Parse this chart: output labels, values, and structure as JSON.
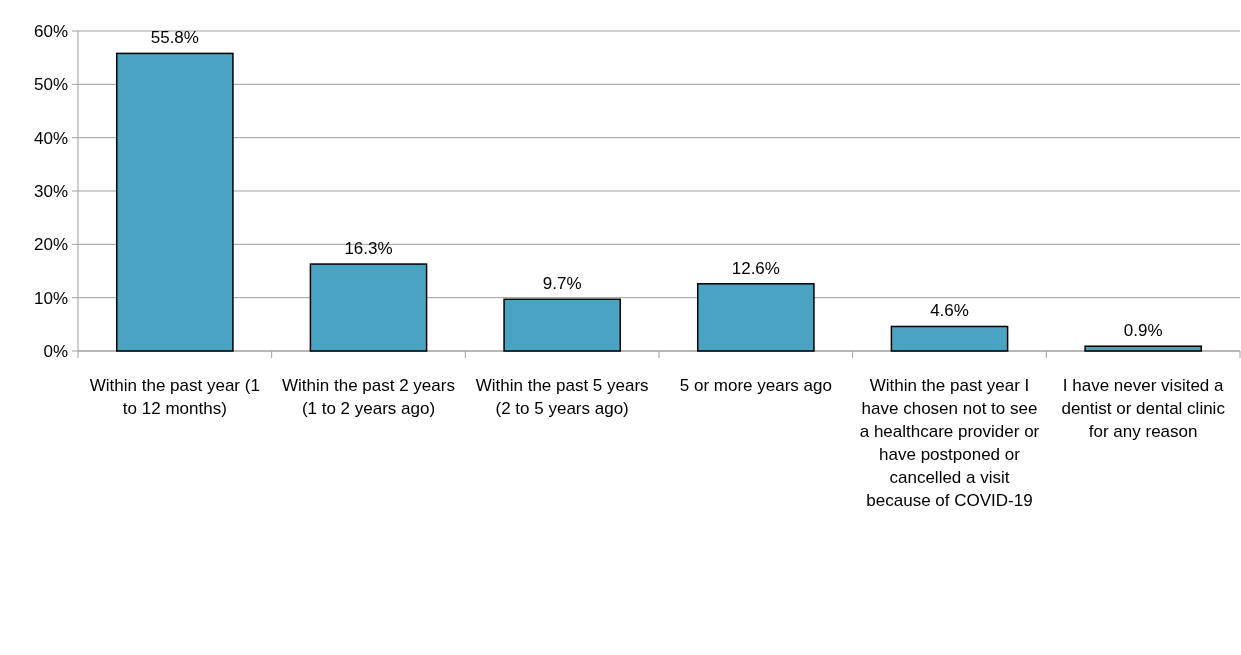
{
  "chart_data": {
    "type": "bar",
    "categories": [
      "Within the past year (1 to 12 months)",
      "Within the past 2 years (1 to 2 years ago)",
      "Within the past 5 years (2 to 5 years ago)",
      "5 or more years ago",
      "Within the past year I have chosen not to see a healthcare provider or have postponed or cancelled a visit because of COVID-19",
      "I have never visited a dentist or dental clinic for any reason"
    ],
    "values": [
      55.8,
      16.3,
      9.7,
      12.6,
      4.6,
      0.9
    ],
    "value_labels": [
      "55.8%",
      "16.3%",
      "9.7%",
      "12.6%",
      "4.6%",
      "0.9%"
    ],
    "color": "#4ba3c3",
    "ylim": [
      0,
      60
    ],
    "yticks": [
      {
        "value": 0,
        "label": "0%"
      },
      {
        "value": 10,
        "label": "10%"
      },
      {
        "value": 20,
        "label": "20%"
      },
      {
        "value": 30,
        "label": "30%"
      },
      {
        "value": 40,
        "label": "40%"
      },
      {
        "value": 50,
        "label": "50%"
      },
      {
        "value": 60,
        "label": "60%"
      }
    ],
    "grid": "y"
  }
}
